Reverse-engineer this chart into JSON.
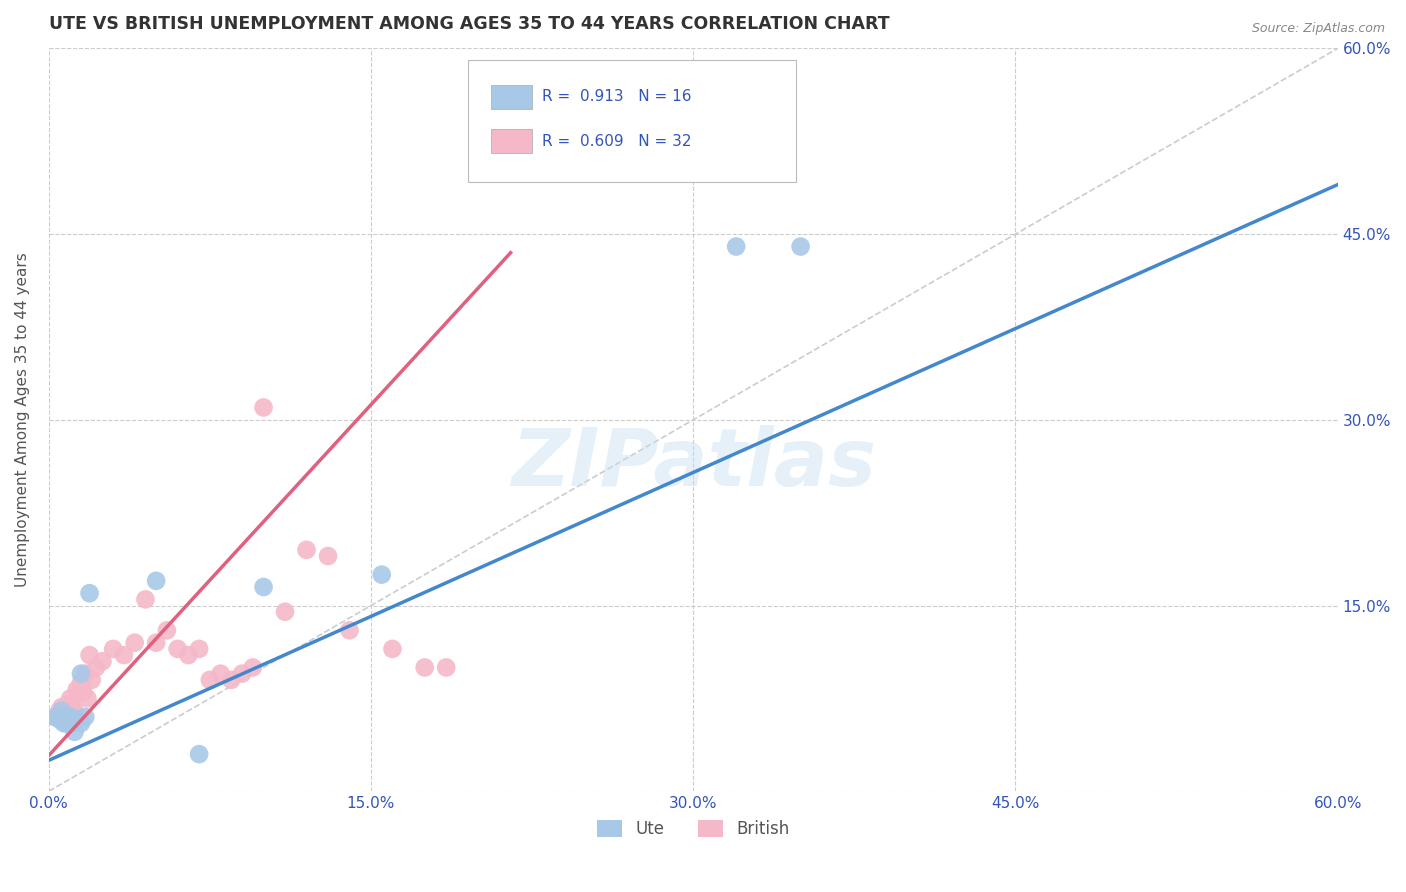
{
  "title": "UTE VS BRITISH UNEMPLOYMENT AMONG AGES 35 TO 44 YEARS CORRELATION CHART",
  "source": "Source: ZipAtlas.com",
  "ylabel": "Unemployment Among Ages 35 to 44 years",
  "xlim": [
    0.0,
    0.6
  ],
  "ylim": [
    0.0,
    0.6
  ],
  "xticks": [
    0.0,
    0.15,
    0.3,
    0.45,
    0.6
  ],
  "yticks": [
    0.0,
    0.15,
    0.3,
    0.45,
    0.6
  ],
  "xtick_labels": [
    "0.0%",
    "15.0%",
    "30.0%",
    "45.0%",
    "60.0%"
  ],
  "right_ytick_labels": [
    "",
    "15.0%",
    "30.0%",
    "45.0%",
    "60.0%"
  ],
  "background_color": "#ffffff",
  "grid_color": "#cccccc",
  "watermark": "ZIPatlas",
  "legend_ute_label": "Ute",
  "legend_british_label": "British",
  "ute_color": "#a8c8e8",
  "british_color": "#f4b8c8",
  "ute_color_edge": "#5599cc",
  "british_color_edge": "#e07090",
  "ute_line_color": "#4488cc",
  "british_line_color": "#e06080",
  "legend_text_color": "#3355bb",
  "axis_label_color": "#3355bb",
  "title_color": "#333333",
  "source_color": "#888888",
  "ylabel_color": "#555555",
  "ute_points_x": [
    0.003,
    0.005,
    0.006,
    0.007,
    0.008,
    0.009,
    0.01,
    0.011,
    0.012,
    0.013,
    0.015,
    0.015,
    0.017,
    0.019,
    0.05,
    0.07,
    0.1,
    0.155,
    0.32,
    0.35
  ],
  "ute_points_y": [
    0.06,
    0.058,
    0.065,
    0.055,
    0.055,
    0.06,
    0.06,
    0.055,
    0.048,
    0.058,
    0.095,
    0.055,
    0.06,
    0.16,
    0.17,
    0.03,
    0.165,
    0.175,
    0.44,
    0.44
  ],
  "british_points_x": [
    0.003,
    0.004,
    0.005,
    0.006,
    0.007,
    0.008,
    0.009,
    0.01,
    0.011,
    0.012,
    0.013,
    0.014,
    0.015,
    0.016,
    0.017,
    0.018,
    0.019,
    0.02,
    0.022,
    0.025,
    0.03,
    0.035,
    0.04,
    0.045,
    0.05,
    0.055,
    0.06,
    0.065,
    0.07,
    0.075,
    0.08,
    0.085,
    0.09,
    0.095,
    0.1,
    0.11,
    0.12,
    0.13,
    0.14,
    0.16,
    0.175,
    0.185
  ],
  "british_points_y": [
    0.06,
    0.06,
    0.065,
    0.068,
    0.058,
    0.06,
    0.07,
    0.075,
    0.068,
    0.065,
    0.082,
    0.08,
    0.088,
    0.08,
    0.095,
    0.075,
    0.11,
    0.09,
    0.1,
    0.105,
    0.115,
    0.11,
    0.12,
    0.155,
    0.12,
    0.13,
    0.115,
    0.11,
    0.115,
    0.09,
    0.095,
    0.09,
    0.095,
    0.1,
    0.31,
    0.145,
    0.195,
    0.19,
    0.13,
    0.115,
    0.1,
    0.1
  ],
  "ute_line_x": [
    0.0,
    0.6
  ],
  "ute_line_y": [
    0.025,
    0.49
  ],
  "british_line_x": [
    -0.01,
    0.215
  ],
  "british_line_y": [
    0.01,
    0.435
  ],
  "diag_line_x": [
    0.0,
    0.6
  ],
  "diag_line_y": [
    0.0,
    0.6
  ]
}
